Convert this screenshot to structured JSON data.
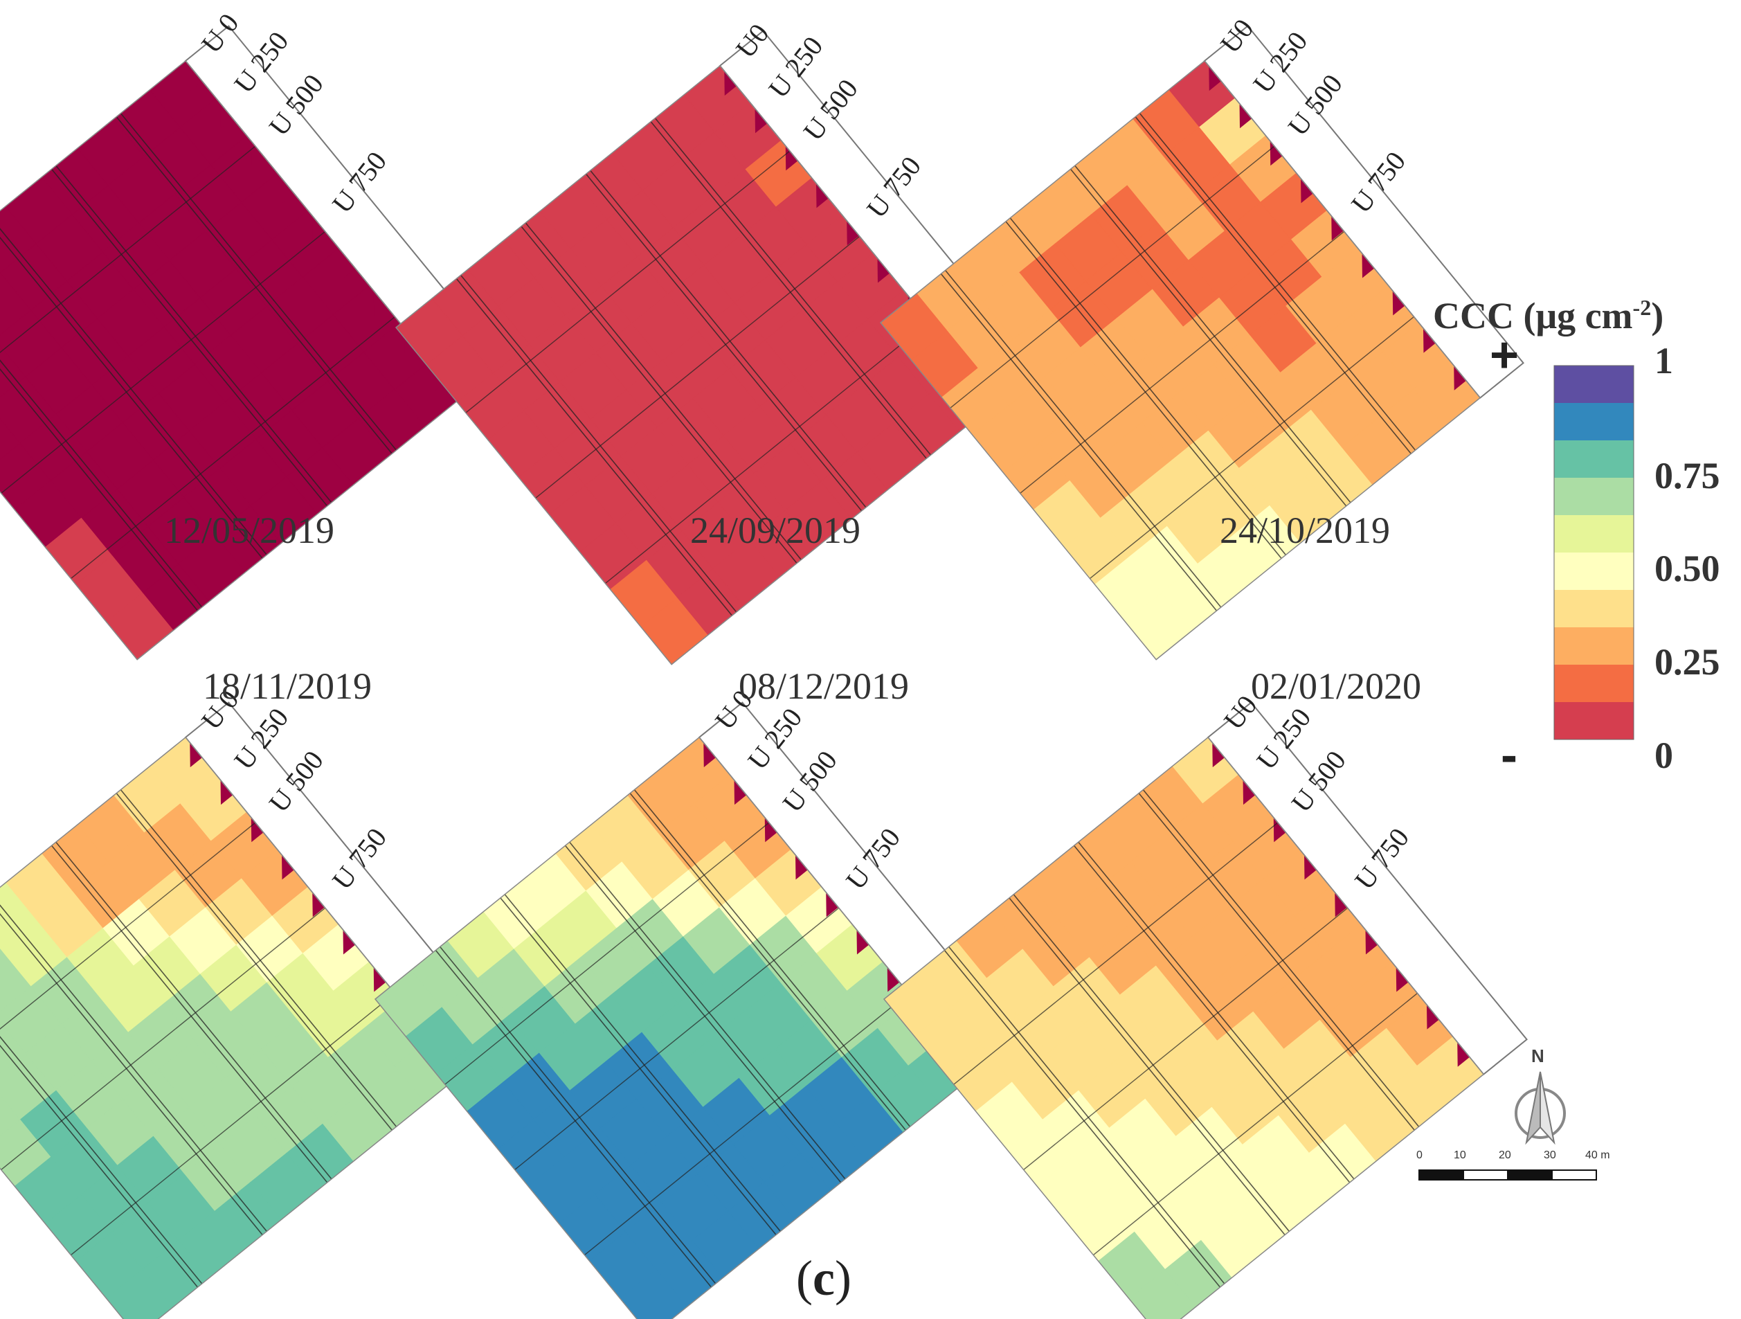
{
  "panels": [
    {
      "date": "12/05/2019",
      "labels": [
        "U 0",
        "U 250",
        "U 500",
        "U 750"
      ],
      "grid": [
        "000000000",
        "000000000",
        "000000000",
        "000000000",
        "000000000",
        "000000000",
        "000000001",
        "000000001",
        "000000001"
      ]
    },
    {
      "date": "24/09/2019",
      "labels": [
        "U0",
        "U 250",
        "U 500",
        "U 750"
      ],
      "grid": [
        "111111111",
        "111111111",
        "211111111",
        "111111111",
        "111111111",
        "111111111",
        "111111111",
        "111111112",
        "111111112"
      ]
    },
    {
      "date": "24/10/2019",
      "labels": [
        "U0",
        "U 250",
        "U 500",
        "U 750"
      ],
      "grid": [
        "123333332",
        "423222332",
        "323222333",
        "222233333",
        "322333333",
        "332333334",
        "333334444",
        "333444455",
        "333445555"
      ]
    },
    {
      "date": "18/11/2019",
      "labels": [
        "U 0",
        "U 250",
        "U 500",
        "U 750"
      ],
      "grid": [
        "443346777",
        "433346777",
        "334567777",
        "345667777",
        "456777787",
        "567777788",
        "667777888",
        "777777888",
        "777888888"
      ]
    },
    {
      "date": "08/12/2019",
      "labels": [
        "U 0",
        "U 250",
        "U 500",
        "U 750"
      ],
      "grid": [
        "334455677",
        "334566778",
        "345777888",
        "457888899",
        "578889999",
        "678889999",
        "778899999",
        "789999999",
        "889999999"
      ]
    },
    {
      "date": "02/01/2020",
      "labels": [
        "U0",
        "U 250",
        "U 500",
        "U 750"
      ],
      "grid": [
        "433333344",
        "333333444",
        "333334444",
        "333344445",
        "333344455",
        "333444555",
        "334445555",
        "344455557",
        "444555577"
      ]
    }
  ],
  "colors": [
    "#9e0142",
    "#d53e4f",
    "#f46d43",
    "#fdae61",
    "#fee08b",
    "#ffffbf",
    "#e6f598",
    "#abdda4",
    "#66c2a5",
    "#3288bd",
    "#5e4fa2"
  ],
  "legend": {
    "title": "CCC (μg cm",
    "title_sup": "-2",
    "title_close": ")",
    "ticks": [
      "1",
      "0.75",
      "0.50",
      "0.25",
      "0"
    ],
    "plus": "+",
    "minus": "-"
  },
  "scale_bar": {
    "ticks": [
      "0",
      "10",
      "20",
      "30",
      "40 m"
    ]
  },
  "north": "N",
  "panel_label": {
    "open": "(",
    "letter": "c",
    "close": ")"
  }
}
